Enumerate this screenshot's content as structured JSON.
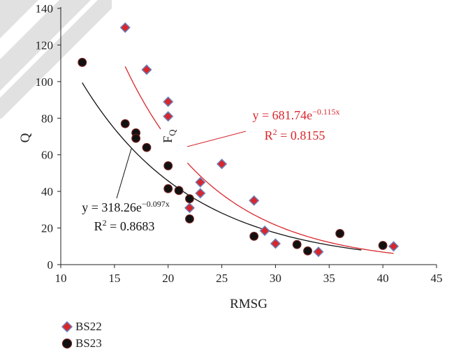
{
  "chart_data": {
    "type": "scatter",
    "xlabel": "RMSG",
    "ylabel": "Q",
    "xlim": [
      10,
      45
    ],
    "ylim": [
      0,
      140
    ],
    "x_ticks": [
      10,
      15,
      20,
      25,
      30,
      35,
      40,
      45
    ],
    "y_ticks": [
      0,
      20,
      40,
      60,
      80,
      100,
      120,
      140
    ],
    "grid": false,
    "legend_position": "bottom-left",
    "series": [
      {
        "name": "BS22",
        "marker": "diamond",
        "fill": "#d9262b",
        "edge": "#6a7fb8",
        "points": [
          [
            16,
            129.5
          ],
          [
            18,
            106.5
          ],
          [
            20,
            89
          ],
          [
            20,
            81
          ],
          [
            22,
            31
          ],
          [
            23,
            39
          ],
          [
            23,
            45
          ],
          [
            25,
            55
          ],
          [
            28,
            35
          ],
          [
            29,
            18.5
          ],
          [
            30,
            11.5
          ],
          [
            34,
            7
          ],
          [
            41,
            10
          ]
        ]
      },
      {
        "name": "BS23",
        "marker": "circle",
        "fill": "#111111",
        "edge": "#6b1a1a",
        "points": [
          [
            12,
            110.5
          ],
          [
            16,
            77
          ],
          [
            17,
            72
          ],
          [
            17,
            69
          ],
          [
            18,
            64
          ],
          [
            20,
            54
          ],
          [
            20,
            41.5
          ],
          [
            21,
            40.5
          ],
          [
            22,
            36
          ],
          [
            22,
            25
          ],
          [
            28,
            15.5
          ],
          [
            32,
            11
          ],
          [
            33,
            7.5
          ],
          [
            36,
            17
          ],
          [
            40,
            10.5
          ]
        ]
      }
    ],
    "fits": [
      {
        "series": "BS22",
        "color": "#d9262b",
        "a": 681.74,
        "b": -0.115,
        "x_range": [
          16,
          41
        ],
        "gap_x": [
          19.3,
          21.8
        ],
        "eq_prefix": "y = 681.74e",
        "eq_exp": "−0.115x",
        "r2_prefix": "R",
        "r2_sup": "2",
        "r2_value": " = 0.8155"
      },
      {
        "series": "BS23",
        "color": "#111111",
        "a": 318.26,
        "b": -0.097,
        "x_range": [
          12,
          38
        ],
        "eq_prefix": "y = 318.26e",
        "eq_exp": "−0.097x",
        "r2_prefix": "R",
        "r2_sup": "2",
        "r2_value": " = 0.8683"
      }
    ],
    "annotation": {
      "label": "F",
      "sub": "Q",
      "color": "#222222"
    }
  },
  "colors": {
    "watermark": "#d9d9d9",
    "axis": "#222222"
  }
}
